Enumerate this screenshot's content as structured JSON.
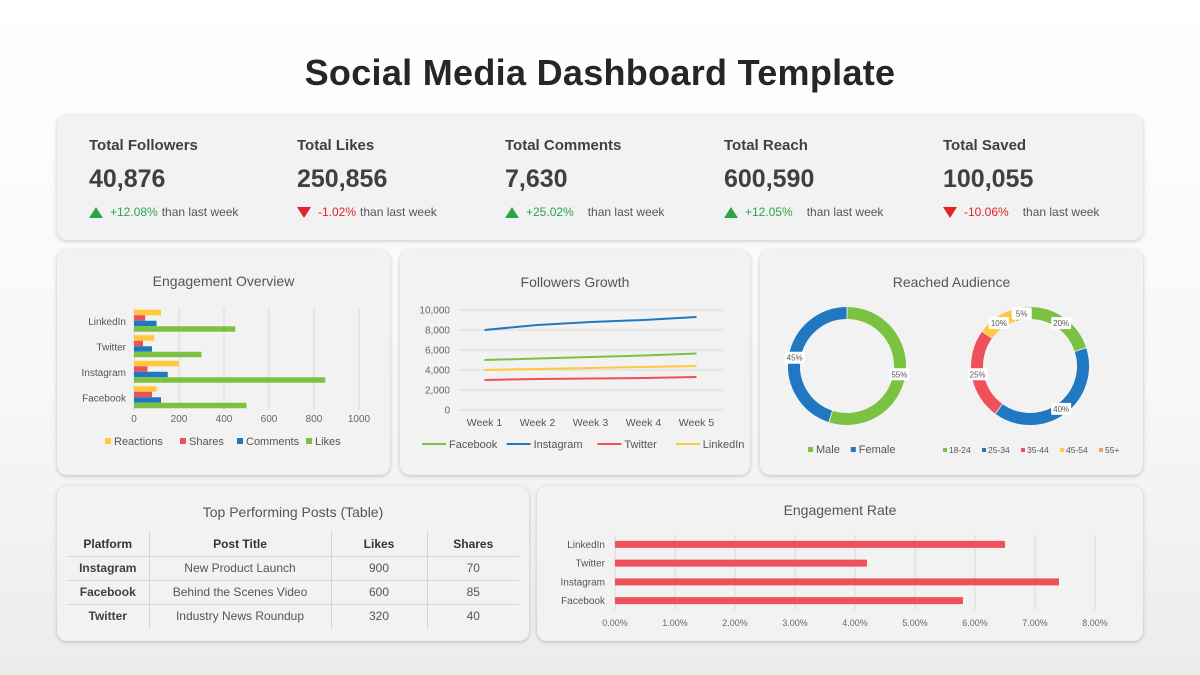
{
  "page": {
    "title": "Social Media Dashboard Template"
  },
  "kpis": [
    {
      "label": "Total Followers",
      "value": "40,876",
      "direction": "up",
      "change": "+12.08%",
      "suffix": "than last week"
    },
    {
      "label": "Total Likes",
      "value": "250,856",
      "direction": "down",
      "change": "-1.02%",
      "suffix": "than last week"
    },
    {
      "label": "Total Comments",
      "value": "7,630",
      "direction": "up",
      "change": "+25.02%",
      "suffix": "than last week"
    },
    {
      "label": "Total Reach",
      "value": "600,590",
      "direction": "up",
      "change": "+12.05%",
      "suffix": "than last week"
    },
    {
      "label": "Total Saved",
      "value": "100,055",
      "direction": "down",
      "change": "-10.06%",
      "suffix": "than last week"
    }
  ],
  "colors": {
    "up": "#2ca54a",
    "down": "#e0242a",
    "reactions": "#ffc83d",
    "shares": "#f0505a",
    "comments": "#1f78c1",
    "likes": "#7cc242",
    "facebook": "#7cc242",
    "instagram": "#1f78c1",
    "twitter": "#f0505a",
    "linkedin": "#ffc83d",
    "male": "#7cc242",
    "female": "#1f78c1",
    "age_18_24": "#7cc242",
    "age_25_34": "#1f78c1",
    "age_35_44": "#f0505a",
    "age_45_54": "#ffc83d",
    "age_55_plus": "#f0a070",
    "engagement_rate_bar": "#f0505a"
  },
  "chart_data": [
    {
      "type": "bar",
      "orientation": "horizontal",
      "title": "Engagement Overview",
      "categories": [
        "LinkedIn",
        "Twitter",
        "Instagram",
        "Facebook"
      ],
      "series": [
        {
          "name": "Reactions",
          "values": [
            120,
            90,
            200,
            100
          ]
        },
        {
          "name": "Shares",
          "values": [
            50,
            40,
            60,
            80
          ]
        },
        {
          "name": "Comments",
          "values": [
            100,
            80,
            150,
            120
          ]
        },
        {
          "name": "Likes",
          "values": [
            450,
            300,
            850,
            500
          ]
        }
      ],
      "xlim": [
        0,
        1000
      ],
      "xticks": [
        "0",
        "200",
        "400",
        "600",
        "800",
        "1000"
      ],
      "legend": "bottom",
      "grid": true
    },
    {
      "type": "line",
      "title": "Followers Growth",
      "x": [
        "Week 1",
        "Week 2",
        "Week 3",
        "Week 4",
        "Week 5"
      ],
      "series": [
        {
          "name": "Facebook",
          "values": [
            5000,
            5150,
            5300,
            5450,
            5650
          ]
        },
        {
          "name": "Instagram",
          "values": [
            8000,
            8500,
            8800,
            9000,
            9300
          ]
        },
        {
          "name": "Twitter",
          "values": [
            3000,
            3100,
            3150,
            3200,
            3300
          ]
        },
        {
          "name": "LinkedIn",
          "values": [
            4000,
            4100,
            4200,
            4300,
            4400
          ]
        }
      ],
      "ylim": [
        0,
        10000
      ],
      "yticks": [
        "0",
        "2,000",
        "4,000",
        "6,000",
        "8,000",
        "10,000"
      ],
      "legend": "bottom",
      "grid": true
    },
    {
      "type": "pie",
      "style": "donut",
      "title": "Reached Audience",
      "donuts": [
        {
          "slices": [
            {
              "name": "Male",
              "value": 55,
              "label": "55%"
            },
            {
              "name": "Female",
              "value": 45,
              "label": "45%"
            }
          ]
        },
        {
          "slices": [
            {
              "name": "18-24",
              "value": 20,
              "label": "20%"
            },
            {
              "name": "25-34",
              "value": 40,
              "label": "40%"
            },
            {
              "name": "35-44",
              "value": 25,
              "label": "25%"
            },
            {
              "name": "45-54",
              "value": 10,
              "label": "10%"
            },
            {
              "name": "55+",
              "value": 5,
              "label": "5%"
            }
          ]
        }
      ],
      "legend": "bottom"
    },
    {
      "type": "bar",
      "orientation": "horizontal",
      "title": "Engagement Rate",
      "categories": [
        "LinkedIn",
        "Twitter",
        "Instagram",
        "Facebook"
      ],
      "values": [
        6.5,
        4.2,
        7.4,
        5.8
      ],
      "unit": "%",
      "xlim": [
        0,
        8
      ],
      "xticks": [
        "0.00%",
        "1.00%",
        "2.00%",
        "3.00%",
        "4.00%",
        "5.00%",
        "6.00%",
        "7.00%",
        "8.00%"
      ],
      "grid": true
    }
  ],
  "table": {
    "title": "Top Performing Posts (Table)",
    "headers": [
      "Platform",
      "Post Title",
      "Likes",
      "Shares"
    ],
    "rows": [
      [
        "Instagram",
        "New Product Launch",
        "900",
        "70"
      ],
      [
        "Facebook",
        "Behind the Scenes Video",
        "600",
        "85"
      ],
      [
        "Twitter",
        "Industry News Roundup",
        "320",
        "40"
      ]
    ]
  }
}
